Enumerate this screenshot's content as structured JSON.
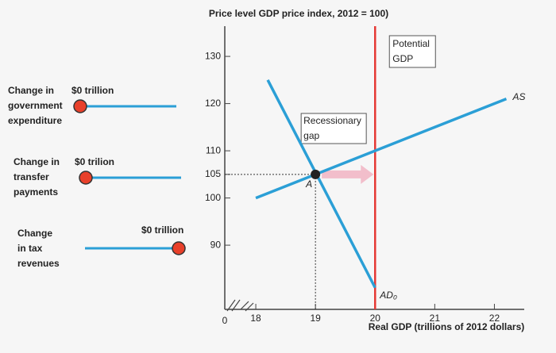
{
  "chart_data": {
    "type": "line",
    "title": "Price level GDP price index, 2012 = 100)",
    "x_label": "Real GDP (trillions of 2012 dollars)",
    "x_origin_label": "0",
    "xlim": [
      17.48,
      22.5
    ],
    "ylim": [
      76.4,
      136.4
    ],
    "xticks": [
      18,
      19,
      20,
      21,
      22
    ],
    "yticks": [
      90,
      100,
      105,
      110,
      120,
      130
    ],
    "series": [
      {
        "name": "AS",
        "color": "#2b9fd6",
        "x": [
          18,
          22.2
        ],
        "values": [
          100,
          121
        ]
      },
      {
        "name": "AD₀",
        "color": "#2b9fd6",
        "x": [
          18.2,
          20
        ],
        "values": [
          125,
          81
        ]
      }
    ],
    "potential_gdp": {
      "label_lines": [
        "Potential",
        "GDP"
      ],
      "x": 20,
      "color": "#e53935"
    },
    "point": {
      "label": "A",
      "x": 19,
      "y": 105
    },
    "gap_label_lines": [
      "Recessionary",
      "gap"
    ]
  },
  "controls": [
    {
      "label_lines": [
        "Change in",
        "government",
        "expenditure"
      ],
      "value_label": "$0 trillion",
      "knob_position": "left"
    },
    {
      "label_lines": [
        "Change in",
        "transfer",
        "payments"
      ],
      "value_label": "$0 trilion",
      "knob_position": "left"
    },
    {
      "label_lines": [
        "Change",
        "in tax",
        "revenues"
      ],
      "value_label": "$0 trillion",
      "knob_position": "right"
    }
  ]
}
